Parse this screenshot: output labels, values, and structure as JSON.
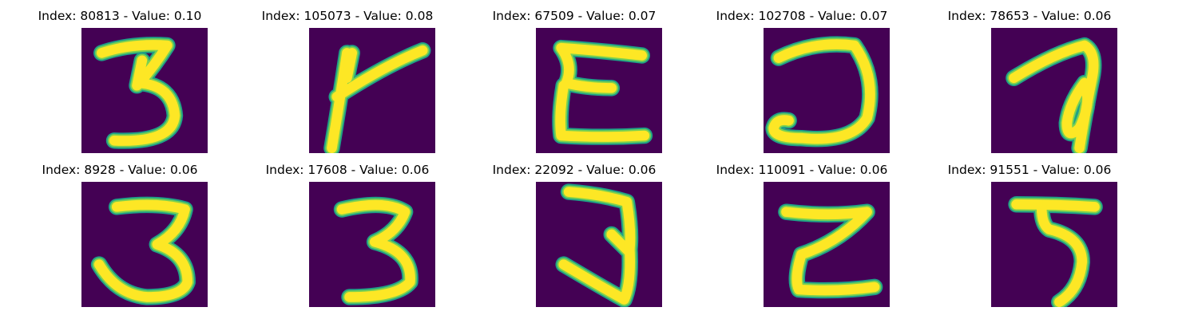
{
  "colors": {
    "background": "#440154",
    "stroke_edge": "#1fa187",
    "stroke_mid": "#7ad151",
    "stroke_core": "#fde725"
  },
  "panels": [
    {
      "title": "Index: 80813 - Value: 0.10",
      "glyph": "3-a"
    },
    {
      "title": "Index: 105073 - Value: 0.08",
      "glyph": "K"
    },
    {
      "title": "Index: 67509 - Value: 0.07",
      "glyph": "E"
    },
    {
      "title": "Index: 102708 - Value: 0.07",
      "glyph": "J-hook"
    },
    {
      "title": "Index: 78653 - Value: 0.06",
      "glyph": "a"
    },
    {
      "title": "Index: 8928 - Value: 0.06",
      "glyph": "3-b"
    },
    {
      "title": "Index: 17608 - Value: 0.06",
      "glyph": "3-c"
    },
    {
      "title": "Index: 22092 - Value: 0.06",
      "glyph": "3-d"
    },
    {
      "title": "Index: 110091 - Value: 0.06",
      "glyph": "Z"
    },
    {
      "title": "Index: 91551 - Value: 0.06",
      "glyph": "5"
    }
  ]
}
